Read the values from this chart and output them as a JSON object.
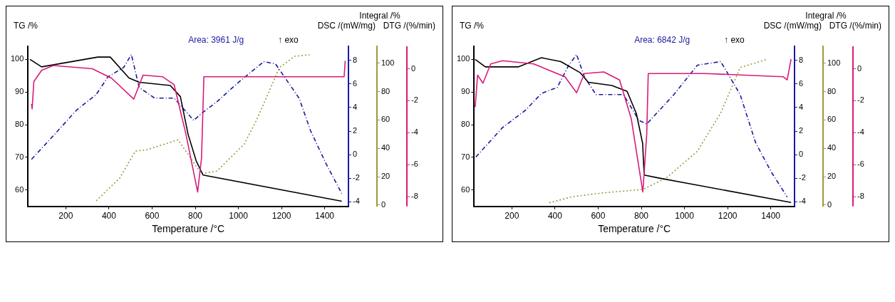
{
  "chart_data": [
    {
      "type": "line",
      "ylabel": "TG /%",
      "y2label": "DSC /(mW/mg)",
      "y3label": "Integral /%",
      "xlabel": "Temperature /°C",
      "xlim": [
        25,
        1510
      ],
      "xticks": [
        200,
        400,
        600,
        800,
        1000,
        1200,
        1400
      ],
      "ylim": [
        55,
        104
      ],
      "yticks": [
        60,
        70,
        80,
        90,
        100
      ],
      "y2lim": [
        -4.4,
        9.2
      ],
      "y2ticks": [
        -4,
        -2,
        0,
        2,
        4,
        6,
        8
      ],
      "y3lim": [
        -1,
        112
      ],
      "y3ticks": [
        0,
        20,
        40,
        60,
        80,
        100
      ],
      "grid": false,
      "legend": false,
      "annotations": [
        "Area: 3961 J/g",
        "↑ exo"
      ],
      "series": [
        {
          "color": "#000000",
          "x": [
            34,
            88,
            348,
            406,
            493,
            540,
            684,
            731,
            767,
            804,
            836,
            1479
          ],
          "values": [
            100,
            97.7,
            100.7,
            100.7,
            94.3,
            93,
            92,
            88.6,
            77,
            69,
            64.6,
            56.6
          ]
        },
        {
          "color": "#1a1aa0",
          "axis": "y2",
          "line_style": "dashed",
          "x": [
            41,
            142,
            251,
            341,
            395,
            468,
            504,
            540,
            612,
            702,
            793,
            829,
            901,
            991,
            1118,
            1172,
            1281,
            1335,
            1407,
            1479
          ],
          "values": [
            -0.4,
            1.6,
            3.8,
            5.1,
            6.6,
            7.4,
            8.5,
            5.7,
            4.8,
            4.8,
            2.9,
            3.5,
            4.5,
            6.0,
            7.9,
            7.7,
            4.8,
            2.0,
            -0.8,
            -3.3
          ]
        },
        {
          "color": "#9a9a40",
          "axis": "y3",
          "line_style": "dotted",
          "x": [
            341,
            450,
            522,
            576,
            720,
            829,
            901,
            1027,
            1081,
            1136,
            1190,
            1262,
            1330
          ],
          "values": [
            3,
            19,
            38,
            39,
            46,
            22,
            24,
            43,
            59,
            78,
            97,
            105,
            106
          ]
        }
      ]
    },
    {
      "type": "line",
      "ylabel": "TG /%",
      "y2label": "DSC /(mW/mg)",
      "y3label": "Integral /%",
      "xlabel": "Temperature /°C",
      "xlim": [
        25,
        1510
      ],
      "xticks": [
        200,
        400,
        600,
        800,
        1000,
        1200,
        1400
      ],
      "ylim": [
        55,
        104
      ],
      "yticks": [
        60,
        70,
        80,
        90,
        100
      ],
      "y2lim": [
        -4.4,
        9.2
      ],
      "y2ticks": [
        -4,
        -2,
        0,
        2,
        4,
        6,
        8
      ],
      "y3lim": [
        -1,
        112
      ],
      "y3ticks": [
        0,
        20,
        40,
        60,
        80,
        100
      ],
      "grid": false,
      "legend": false,
      "annotations": [
        "Area: 6842 J/g",
        "↑ exo"
      ],
      "series": [
        {
          "color": "#000000",
          "x": [
            30,
            77,
            229,
            337,
            427,
            517,
            554,
            663,
            734,
            777,
            806,
            813,
            880,
            1494
          ],
          "values": [
            100,
            97.7,
            97.7,
            100.5,
            99.3,
            95.9,
            93,
            92,
            90.2,
            83.4,
            74.3,
            64.6,
            63.7,
            56.2
          ]
        },
        {
          "color": "#1a1aa0",
          "axis": "y2",
          "line_style": "dashed",
          "x": [
            33,
            157,
            265,
            337,
            410,
            464,
            500,
            536,
            590,
            717,
            789,
            825,
            951,
            1060,
            1168,
            1258,
            1330,
            1403,
            1476
          ],
          "values": [
            -0.2,
            2.3,
            3.8,
            5.2,
            5.7,
            7.6,
            8.5,
            6.6,
            5.1,
            5.1,
            2.9,
            2.6,
            5.1,
            7.6,
            7.9,
            5.1,
            1.0,
            -1.5,
            -3.6
          ]
        },
        {
          "color": "#9a9a40",
          "axis": "y3",
          "line_style": "dotted",
          "x": [
            373,
            482,
            626,
            807,
            915,
            1060,
            1168,
            1258,
            1385
          ],
          "values": [
            1.6,
            5.9,
            8.6,
            11,
            19,
            38,
            65,
            97,
            103
          ]
        }
      ]
    },
    {
      "type": "line",
      "ylabel": "DTG /(%/min)",
      "xlim": [
        25,
        1510
      ],
      "ylim": [
        -8.6,
        1.4
      ],
      "yticks": [
        -8,
        -6,
        -4,
        -2,
        0
      ],
      "tick_labels": "y",
      "grid": false,
      "legend": false,
      "series": [
        {
          "color": "#d81b7a",
          "x": [
            41,
            44,
            52,
            88,
            142,
            323,
            413,
            515,
            558,
            648,
            702,
            757,
            811,
            829,
            840,
            1490,
            1495
          ],
          "values": [
            -2.2,
            -2.5,
            -0.8,
            -0.1,
            0.2,
            0,
            -0.6,
            -1.9,
            -0.4,
            -0.5,
            -1.0,
            -4.1,
            -7.7,
            -5.6,
            -0.5,
            -0.5,
            0.5
          ]
        }
      ]
    },
    {
      "type": "line",
      "ylabel": "DTG /(%/min)",
      "xlim": [
        25,
        1510
      ],
      "ylim": [
        -8.6,
        1.4
      ],
      "yticks": [
        -8,
        -6,
        -4,
        -2,
        0
      ],
      "tick_labels": "y",
      "grid": false,
      "legend": false,
      "series": [
        {
          "color": "#d81b7a",
          "x": [
            30,
            41,
            66,
            102,
            157,
            301,
            446,
            500,
            536,
            626,
            699,
            753,
            807,
            825,
            832,
            1096,
            1457,
            1476,
            1494
          ],
          "values": [
            -2.4,
            -0.4,
            -0.9,
            0.3,
            0.5,
            0.3,
            -0.5,
            -1.5,
            -0.3,
            -0.2,
            -0.7,
            -3.1,
            -7.7,
            -4.1,
            -0.3,
            -0.3,
            -0.5,
            -0.7,
            0.6
          ]
        }
      ]
    }
  ]
}
